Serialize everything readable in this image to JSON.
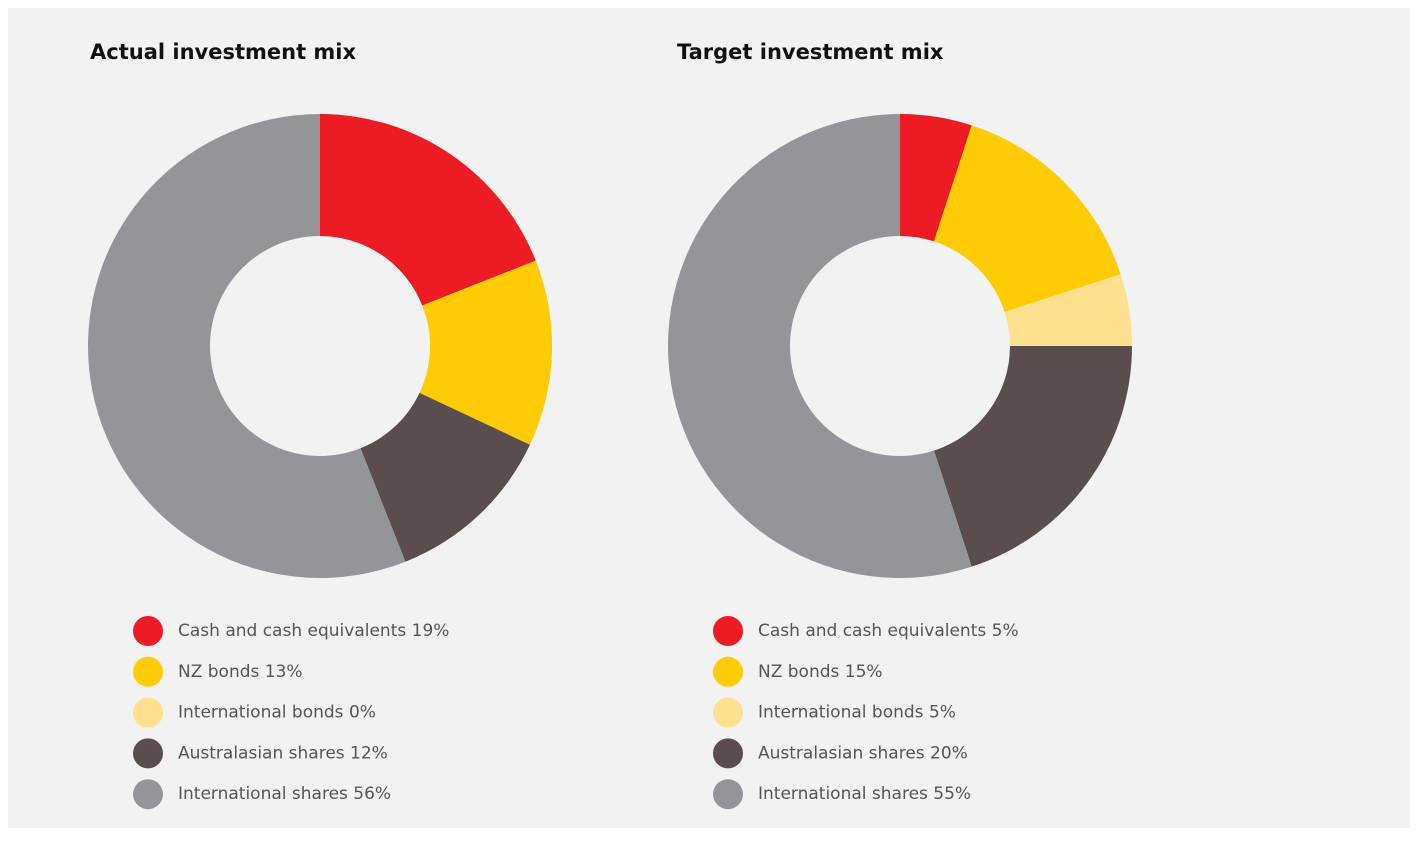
{
  "chart_data": [
    {
      "type": "pie",
      "title": "Actual investment mix",
      "categories": [
        "Cash and cash equivalents",
        "NZ bonds",
        "International bonds",
        "Australasian shares",
        "International shares"
      ],
      "values": [
        19,
        13,
        0,
        12,
        56
      ],
      "value_labels": [
        "19%",
        "13%",
        "0%",
        "12%",
        "56%"
      ],
      "colors": [
        "#ed1c24",
        "#ffcb05",
        "#ffe08f",
        "#594d4e",
        "#939598"
      ]
    },
    {
      "type": "pie",
      "title": "Target investment mix",
      "categories": [
        "Cash and cash equivalents",
        "NZ bonds",
        "International bonds",
        "Australasian shares",
        "International shares"
      ],
      "values": [
        5,
        15,
        5,
        20,
        55
      ],
      "value_labels": [
        "5%",
        "15%",
        "5%",
        "20%",
        "55%"
      ],
      "colors": [
        "#ed1c24",
        "#ffcb05",
        "#ffe08f",
        "#594d4e",
        "#939598"
      ]
    }
  ]
}
